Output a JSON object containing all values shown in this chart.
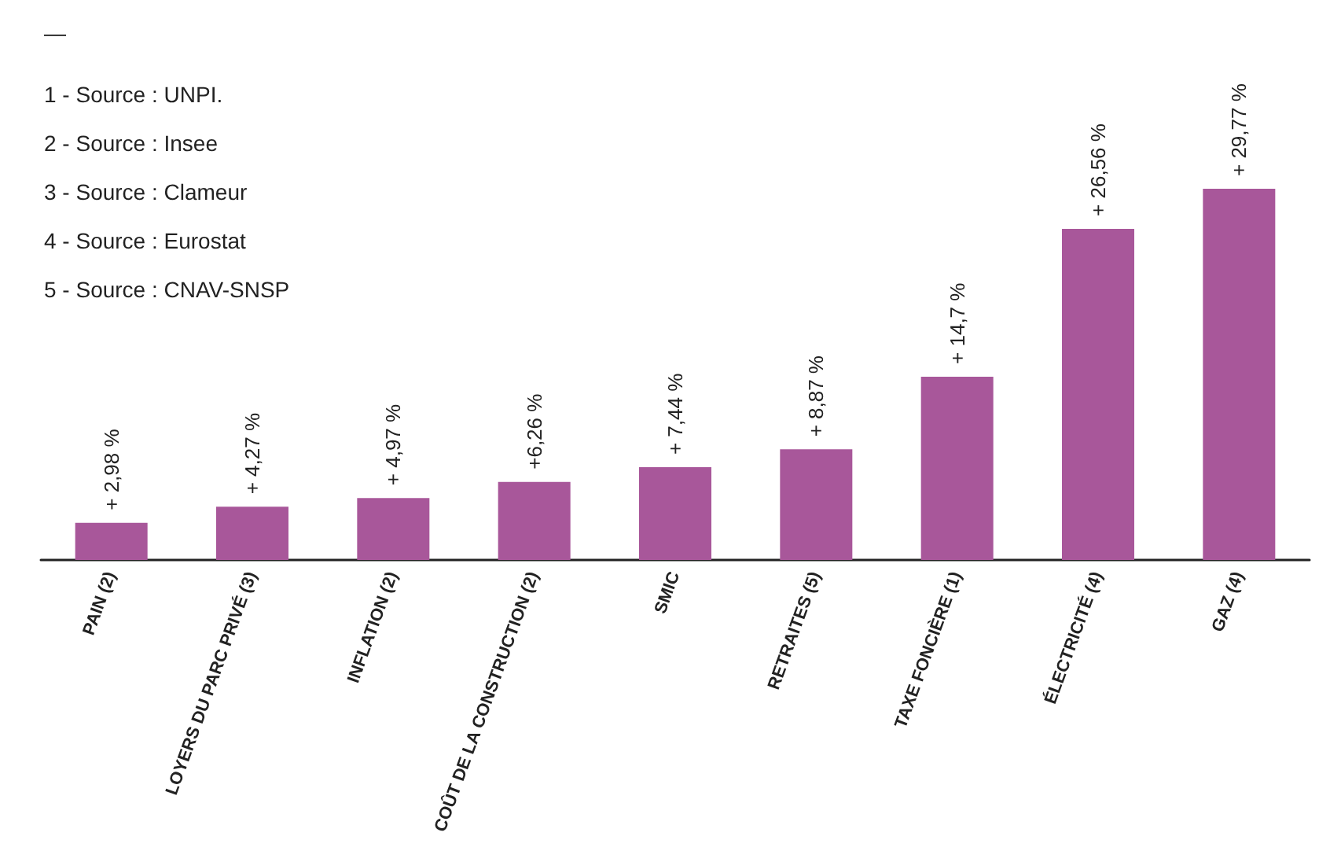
{
  "chart_data": {
    "type": "bar",
    "relative": false,
    "categories": [
      "PAIN (2)",
      "LOYERS DU PARC PRIVÉ (3)",
      "INFLATION (2)",
      "COÛT DE LA CONSTRUCTION (2)",
      "SMIC",
      "RETRAITES (5)",
      "TAXE FONCIÈRE (1)",
      "ÉLECTRICITÉ (4)",
      "GAZ (4)"
    ],
    "values": [
      2.98,
      4.27,
      4.97,
      6.26,
      7.44,
      8.87,
      14.7,
      26.56,
      29.77
    ],
    "value_labels": [
      "+ 2,98 %",
      "+ 4,27 %",
      "+ 4,97 %",
      "+6,26 %",
      "+ 7,44 %",
      "+ 8,87 %",
      "+ 14,7 %",
      "+ 26,56 %",
      "+ 29,77 %"
    ],
    "color": "#a8579a",
    "annotations": [
      "—",
      "1 - Source : UNPI.",
      "2 - Source : Insee",
      "3 - Source : Clameur",
      "4 - Source : Eurostat",
      "5 - Source : CNAV-SNSP"
    ],
    "grid": false
  }
}
